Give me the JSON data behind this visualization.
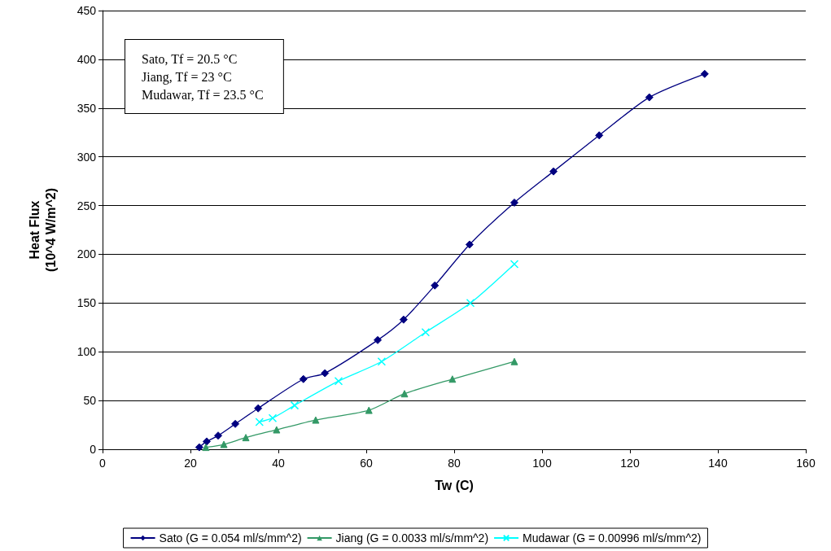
{
  "chart_data": {
    "type": "line",
    "xlabel": "Tw (C)",
    "ylabel": "Heat Flux\n(10^4 W/m^2)",
    "xlim": [
      0,
      160
    ],
    "xticks": [
      0,
      20,
      40,
      60,
      80,
      100,
      120,
      140,
      160
    ],
    "ylim": [
      0,
      450
    ],
    "yticks": [
      0,
      50,
      100,
      150,
      200,
      250,
      300,
      350,
      400,
      450
    ],
    "grid": "y",
    "legend": "bottom",
    "annotations": [
      "Sato, Tf = 20.5 °C",
      "Jiang, Tf = 23 °C",
      "Mudawar, Tf = 23.5 °C"
    ],
    "series": [
      {
        "name": "Sato (G = 0.054 ml/s/mm^2)",
        "color": "#000080",
        "marker": "diamond",
        "x": [
          22.0,
          23.7,
          26.3,
          30.2,
          35.4,
          45.7,
          50.6,
          62.6,
          68.5,
          75.6,
          83.5,
          93.7,
          102.6,
          113,
          124.4,
          137
        ],
        "values": [
          2,
          8,
          14,
          26,
          42,
          72,
          78,
          112,
          133,
          168,
          210,
          253,
          285,
          322,
          361,
          385
        ]
      },
      {
        "name": "Jiang (G = 0.0033 ml/s/mm^2)",
        "color": "#339966",
        "marker": "triangle",
        "x": [
          23.5,
          27.6,
          32.6,
          39.6,
          48.5,
          60.6,
          68.7,
          79.6,
          93.7
        ],
        "values": [
          2,
          5,
          12,
          20,
          30,
          40,
          57,
          72,
          90
        ]
      },
      {
        "name": "Mudawar (G = 0.00996 ml/s/mm^2)",
        "color": "#00ffff",
        "marker": "cross",
        "x": [
          35.7,
          38.7,
          43.7,
          53.7,
          63.5,
          73.5,
          83.7,
          93.7
        ],
        "values": [
          28,
          32,
          45,
          70,
          90,
          120,
          150,
          190
        ]
      }
    ]
  }
}
